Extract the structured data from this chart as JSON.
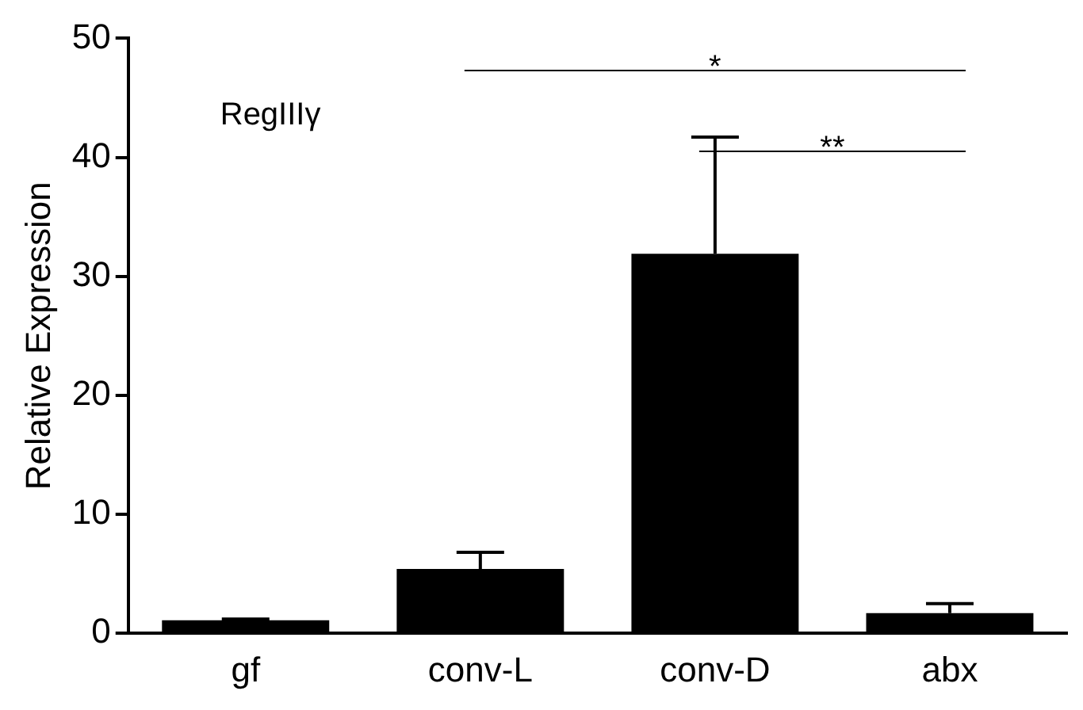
{
  "chart_data": {
    "type": "bar",
    "ylabel": "Relative Expression",
    "categories": [
      "gf",
      "conv-L",
      "conv-D",
      "abx"
    ],
    "values": [
      1.1,
      5.4,
      31.9,
      1.7
    ],
    "errors": [
      0.1,
      1.4,
      9.8,
      0.8
    ],
    "color": "#000000",
    "ylim": [
      0,
      50
    ],
    "yticks": [
      0,
      10,
      20,
      30,
      40,
      50
    ],
    "grid": false,
    "legend": false,
    "annotations": [
      "RegIIIγ",
      "*",
      "**"
    ]
  }
}
